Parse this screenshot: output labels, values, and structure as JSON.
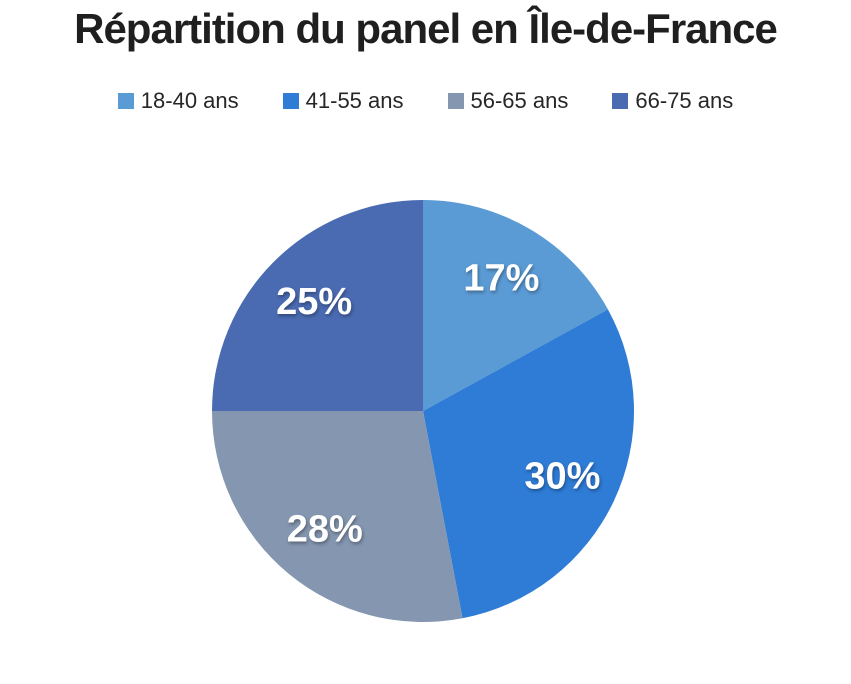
{
  "page": {
    "background_color": "#FFFFFF"
  },
  "chart_data": {
    "type": "pie",
    "title": "Répartition du panel en Île-de-France",
    "categories": [
      "18-40 ans",
      "41-55 ans",
      "56-65 ans",
      "66-75 ans"
    ],
    "values": [
      17,
      30,
      28,
      25
    ],
    "labels": [
      "17%",
      "30%",
      "28%",
      "25%"
    ],
    "unit": "%",
    "colors": [
      "#5B9BD5",
      "#2E7CD6",
      "#8496B0",
      "#4A6BB2"
    ],
    "label_color": "#FFFFFF",
    "title_color": "#1F1F1F",
    "legend_text_color": "#262626",
    "start_angle_deg": 0,
    "direction": "clockwise",
    "legend_position": "top",
    "grid": "off"
  }
}
